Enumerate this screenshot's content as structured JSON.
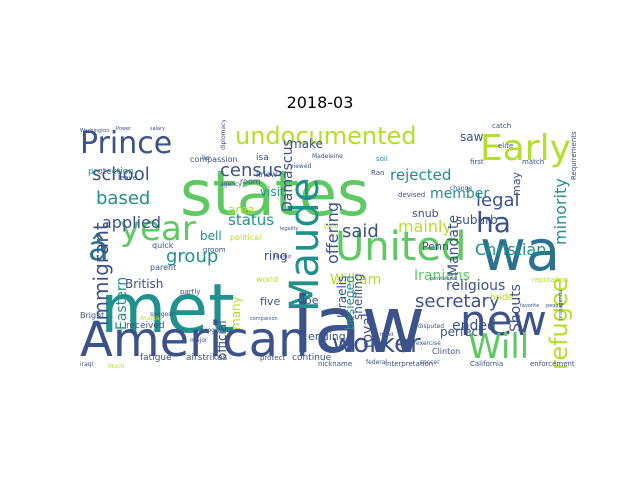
{
  "title": "2018-03",
  "chart_data": {
    "type": "wordcloud",
    "title": "2018-03",
    "words": [
      {
        "text": "states",
        "color": "#5ec962",
        "weight": 100
      },
      {
        "text": "law",
        "color": "#3b528b",
        "weight": 96
      },
      {
        "text": "met",
        "color": "#21918c",
        "weight": 94
      },
      {
        "text": "wa",
        "color": "#2c728e",
        "weight": 82
      },
      {
        "text": "American",
        "color": "#3b528b",
        "weight": 64
      },
      {
        "text": "Prince",
        "color": "#3b528b",
        "weight": 48
      },
      {
        "text": "United",
        "color": "#5ec962",
        "weight": 48
      },
      {
        "text": "Maude",
        "color": "#21918c",
        "weight": 44
      },
      {
        "text": "Early",
        "color": "#b5de2b",
        "weight": 44
      },
      {
        "text": "new",
        "color": "#3b528b",
        "weight": 42
      },
      {
        "text": "undocumented",
        "color": "#b5de2b",
        "weight": 38
      },
      {
        "text": "year",
        "color": "#5ec962",
        "weight": 38
      },
      {
        "text": "Will",
        "color": "#5ec962",
        "weight": 36
      },
      {
        "text": "â",
        "color": "#2c728e",
        "weight": 34
      },
      {
        "text": "worker",
        "color": "#3b528b",
        "weight": 28
      },
      {
        "text": "refugee",
        "color": "#b5de2b",
        "weight": 24
      },
      {
        "text": "immigrant",
        "color": "#3b528b",
        "weight": 22
      },
      {
        "text": "ha",
        "color": "#3b528b",
        "weight": 22
      },
      {
        "text": "secretary",
        "color": "#3b528b",
        "weight": 20
      },
      {
        "text": "census",
        "color": "#3b528b",
        "weight": 20
      },
      {
        "text": "school",
        "color": "#3b528b",
        "weight": 18
      },
      {
        "text": "legal",
        "color": "#3b528b",
        "weight": 18
      },
      {
        "text": "based",
        "color": "#21918c",
        "weight": 18
      },
      {
        "text": "group",
        "color": "#21918c",
        "weight": 18
      },
      {
        "text": "minority",
        "color": "#21918c",
        "weight": 16
      },
      {
        "text": "said",
        "color": "#3b528b",
        "weight": 16
      },
      {
        "text": "Christian",
        "color": "#21918c",
        "weight": 16
      },
      {
        "text": "applied",
        "color": "#3b528b",
        "weight": 14
      },
      {
        "text": "mainly",
        "color": "#b5de2b",
        "weight": 14
      },
      {
        "text": "Iranians",
        "color": "#5ec962",
        "weight": 14
      },
      {
        "text": "rejected",
        "color": "#21918c",
        "weight": 14
      },
      {
        "text": "offering",
        "color": "#3b528b",
        "weight": 14
      },
      {
        "text": "status",
        "color": "#21918c",
        "weight": 14
      },
      {
        "text": "Damascus",
        "color": "#3b528b",
        "weight": 12
      },
      {
        "text": "member",
        "color": "#21918c",
        "weight": 12
      },
      {
        "text": "religious",
        "color": "#3b528b",
        "weight": 12
      },
      {
        "text": "Shouts",
        "color": "#3b528b",
        "weight": 12
      },
      {
        "text": "Mandate",
        "color": "#3b528b",
        "weight": 12
      },
      {
        "text": "William",
        "color": "#b5de2b",
        "weight": 12
      },
      {
        "text": "royal",
        "color": "#3b528b",
        "weight": 12
      },
      {
        "text": "Eastern",
        "color": "#21918c",
        "weight": 12
      },
      {
        "text": "ended",
        "color": "#3b528b",
        "weight": 12
      },
      {
        "text": "British",
        "color": "#3b528b",
        "weight": 10
      },
      {
        "text": "official",
        "color": "#3b528b",
        "weight": 10
      },
      {
        "text": "shelling",
        "color": "#3b528b",
        "weight": 10
      },
      {
        "text": "Israelis",
        "color": "#3b528b",
        "weight": 10
      },
      {
        "text": "besieged",
        "color": "#21918c",
        "weight": 9
      },
      {
        "text": "suburb",
        "color": "#3b528b",
        "weight": 10
      },
      {
        "text": "make",
        "color": "#3b528b",
        "weight": 10
      },
      {
        "text": "saw",
        "color": "#3b528b",
        "weight": 10
      },
      {
        "text": "ring",
        "color": "#3b528b",
        "weight": 10
      },
      {
        "text": "many",
        "color": "#b5de2b",
        "weight": 10
      },
      {
        "text": "bell",
        "color": "#21918c",
        "weight": 10
      },
      {
        "text": "visit",
        "color": "#21918c",
        "weight": 9
      },
      {
        "text": "area",
        "color": "#b5de2b",
        "weight": 9
      },
      {
        "text": "may",
        "color": "#3b528b",
        "weight": 9
      },
      {
        "text": "perfect",
        "color": "#3b528b",
        "weight": 9
      },
      {
        "text": "five",
        "color": "#3b528b",
        "weight": 8
      },
      {
        "text": "doe",
        "color": "#3b528b",
        "weight": 8
      },
      {
        "text": "ending",
        "color": "#3b528b",
        "weight": 8
      },
      {
        "text": "Penn",
        "color": "#3b528b",
        "weight": 8
      },
      {
        "text": "snub",
        "color": "#3b528b",
        "weight": 8
      },
      {
        "text": "continue",
        "color": "#3b528b",
        "weight": 7
      },
      {
        "text": "received",
        "color": "#3b528b",
        "weight": 7
      },
      {
        "text": "airstrikes",
        "color": "#3b528b",
        "weight": 7
      },
      {
        "text": "fatigue",
        "color": "#3b528b",
        "weight": 7
      },
      {
        "text": "protection",
        "color": "#21918c",
        "weight": 7
      },
      {
        "text": "compassion",
        "color": "#3b528b",
        "weight": 6
      },
      {
        "text": "Bright",
        "color": "#3b528b",
        "weight": 6
      },
      {
        "text": "Clinton",
        "color": "#3b528b",
        "weight": 6
      },
      {
        "text": "bride",
        "color": "#b5de2b",
        "weight": 6
      },
      {
        "text": "isa",
        "color": "#3b528b",
        "weight": 6
      },
      {
        "text": "knew",
        "color": "#3b528b",
        "weight": 6
      },
      {
        "text": "room",
        "color": "#3b528b",
        "weight": 6
      },
      {
        "text": "world",
        "color": "#b5de2b",
        "weight": 6
      },
      {
        "text": "parent",
        "color": "#3b528b",
        "weight": 6
      },
      {
        "text": "quick",
        "color": "#3b528b",
        "weight": 5
      },
      {
        "text": "political",
        "color": "#b5de2b",
        "weight": 5
      },
      {
        "text": "enforcement",
        "color": "#3b528b",
        "weight": 5
      },
      {
        "text": "interpretation",
        "color": "#3b528b",
        "weight": 5
      },
      {
        "text": "California",
        "color": "#3b528b",
        "weight": 5
      },
      {
        "text": "nickname",
        "color": "#3b528b",
        "weight": 5
      },
      {
        "text": "protect",
        "color": "#3b528b",
        "weight": 5
      },
      {
        "text": "reputation",
        "color": "#b5de2b",
        "weight": 5
      },
      {
        "text": "partly",
        "color": "#3b528b",
        "weight": 5
      },
      {
        "text": "Requirements",
        "color": "#3b528b",
        "weight": 5
      },
      {
        "text": "elite",
        "color": "#3b528b",
        "weight": 5
      },
      {
        "text": "catch",
        "color": "#3b528b",
        "weight": 5
      },
      {
        "text": "first",
        "color": "#3b528b",
        "weight": 5
      },
      {
        "text": "match",
        "color": "#3b528b",
        "weight": 5
      },
      {
        "text": "lie",
        "color": "#3b528b",
        "weight": 5
      },
      {
        "text": "leave",
        "color": "#3b528b",
        "weight": 5
      },
      {
        "text": "Ran",
        "color": "#3b528b",
        "weight": 5
      },
      {
        "text": "devised",
        "color": "#3b528b",
        "weight": 5
      },
      {
        "text": "soil",
        "color": "#21918c",
        "weight": 5
      },
      {
        "text": "groom",
        "color": "#3b528b",
        "weight": 5
      },
      {
        "text": "agency",
        "color": "#3b528b",
        "weight": 5
      },
      {
        "text": "diplomacy",
        "color": "#3b528b",
        "weight": 5
      },
      {
        "text": "Madeleine",
        "color": "#3b528b",
        "weight": 5
      },
      {
        "text": "disputed",
        "color": "#3b528b",
        "weight": 5
      },
      {
        "text": "exercise",
        "color": "#3b528b",
        "weight": 5
      },
      {
        "text": "federal",
        "color": "#3b528b",
        "weight": 5
      },
      {
        "text": "soccer",
        "color": "#3b528b",
        "weight": 5
      },
      {
        "text": "suggest",
        "color": "#3b528b",
        "weight": 4
      },
      {
        "text": "geography",
        "color": "#3b528b",
        "weight": 4
      },
      {
        "text": "Arabia",
        "color": "#b5de2b",
        "weight": 4
      },
      {
        "text": "iraqi",
        "color": "#3b528b",
        "weight": 4
      },
      {
        "text": "Much",
        "color": "#b5de2b",
        "weight": 4
      },
      {
        "text": "major",
        "color": "#3b528b",
        "weight": 4
      },
      {
        "text": "viewed",
        "color": "#3b528b",
        "weight": 4
      },
      {
        "text": "change",
        "color": "#3b528b",
        "weight": 4
      },
      {
        "text": "Long",
        "color": "#b5de2b",
        "weight": 4
      },
      {
        "text": "Washington",
        "color": "#3b528b",
        "weight": 4
      },
      {
        "text": "Power",
        "color": "#3b528b",
        "weight": 4
      },
      {
        "text": "salary",
        "color": "#3b528b",
        "weight": 4
      },
      {
        "text": "favorite",
        "color": "#3b528b",
        "weight": 4
      },
      {
        "text": "people",
        "color": "#3b528b",
        "weight": 4
      },
      {
        "text": "propaganda",
        "color": "#3b528b",
        "weight": 4
      },
      {
        "text": "provisional",
        "color": "#3b528b",
        "weight": 4
      },
      {
        "text": "legality",
        "color": "#3b528b",
        "weight": 4
      },
      {
        "text": "trend",
        "color": "#3b528b",
        "weight": 4
      },
      {
        "text": "companion",
        "color": "#3b528b",
        "weight": 4
      },
      {
        "text": "Islamic",
        "color": "#3b528b",
        "weight": 4
      }
    ]
  }
}
